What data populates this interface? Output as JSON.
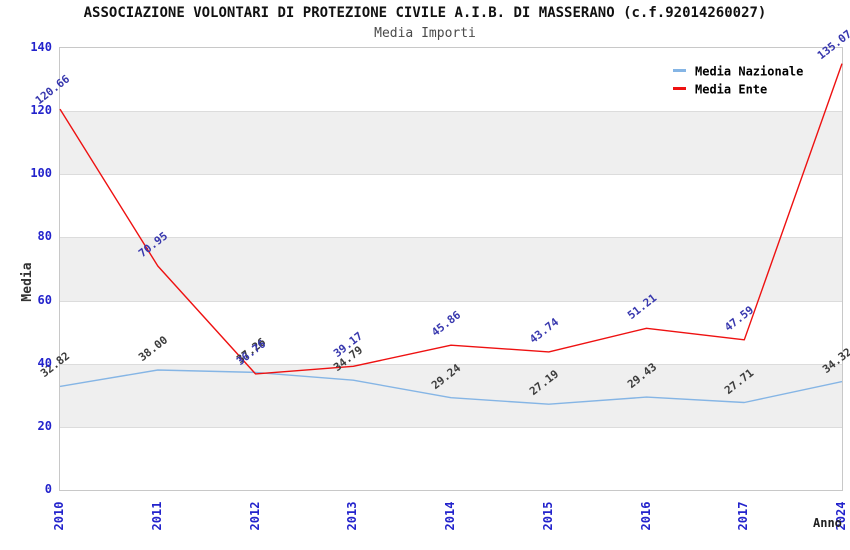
{
  "title": "ASSOCIAZIONE VOLONTARI DI PROTEZIONE CIVILE A.I.B. DI MASSERANO (c.f.92014260027)",
  "subtitle": "Media Importi",
  "chart_data": {
    "type": "line",
    "categories": [
      "2010",
      "2011",
      "2012",
      "2013",
      "2014",
      "2015",
      "2016",
      "2017",
      "2024"
    ],
    "series": [
      {
        "name": "Media Nazionale",
        "color": "#85b5e5",
        "label_color": "#3c3c3c",
        "values": [
          32.82,
          38.0,
          37.26,
          34.79,
          29.24,
          27.19,
          29.43,
          27.71,
          34.32
        ]
      },
      {
        "name": "Media Ente",
        "color": "#ee1111",
        "label_color": "#3838ae",
        "values": [
          120.66,
          70.95,
          36.76,
          39.17,
          45.86,
          43.74,
          51.21,
          47.59,
          135.07
        ]
      }
    ],
    "xlabel": "Anno",
    "ylabel": "Media",
    "ylim": [
      0,
      140
    ],
    "ytick_step": 20,
    "grid": "horizontal-bands",
    "band_color": "#efefef",
    "axis_tick_color": "#2323cc",
    "legend_position": "top-right",
    "label_decimals": 2
  }
}
